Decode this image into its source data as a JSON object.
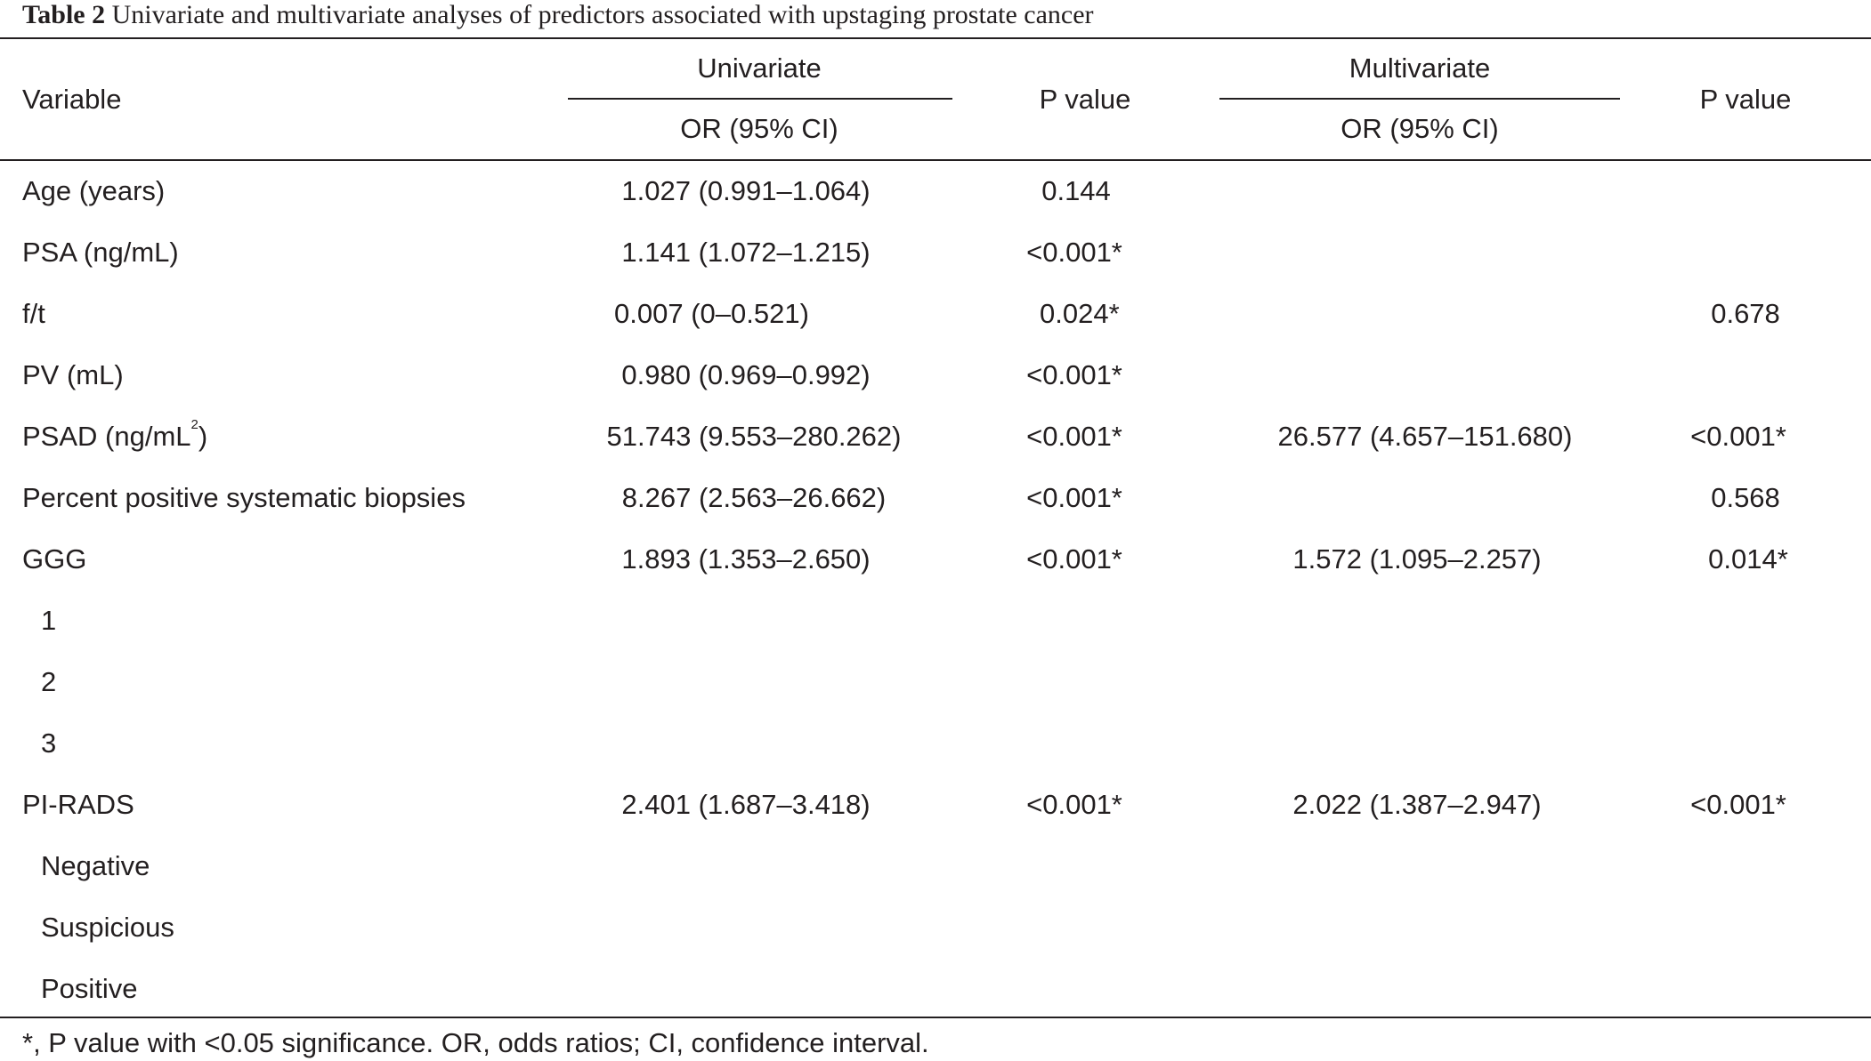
{
  "caption": {
    "label": "Table 2",
    "text": "Univariate and multivariate analyses of predictors associated with upstaging prostate cancer"
  },
  "header": {
    "variable": "Variable",
    "univariate": "Univariate",
    "multivariate": "Multivariate",
    "or_ci": "OR (95% CI)",
    "p_value": "P value"
  },
  "rows": [
    {
      "variable": "Age (years)",
      "uni_or": "1.027 (0.991–1.064)",
      "uni_p": "0.144",
      "multi_or": "",
      "multi_p": ""
    },
    {
      "variable": "PSA (ng/mL)",
      "uni_or": "1.141 (1.072–1.215)",
      "uni_p": "<0.001*",
      "multi_or": "",
      "multi_p": ""
    },
    {
      "variable": "f/t",
      "uni_or": "0.007 (0–0.521)",
      "uni_p": "0.024*",
      "multi_or": "",
      "multi_p": "0.678"
    },
    {
      "variable": "PV (mL)",
      "uni_or": "0.980 (0.969–0.992)",
      "uni_p": "<0.001*",
      "multi_or": "",
      "multi_p": ""
    },
    {
      "variable": "PSAD (ng/mL",
      "variable_sup": "2",
      "variable_tail": ")",
      "uni_or": "51.743 (9.553–280.262)",
      "uni_p": "<0.001*",
      "multi_or": "26.577 (4.657–151.680)",
      "multi_p": "<0.001*"
    },
    {
      "variable": "Percent positive systematic biopsies",
      "uni_or": "8.267 (2.563–26.662)",
      "uni_p": "<0.001*",
      "multi_or": "",
      "multi_p": "0.568"
    },
    {
      "variable": "GGG",
      "uni_or": "1.893 (1.353–2.650)",
      "uni_p": "<0.001*",
      "multi_or": "1.572 (1.095–2.257)",
      "multi_p": "0.014*"
    },
    {
      "variable": "1",
      "uni_or": "",
      "uni_p": "",
      "multi_or": "",
      "multi_p": ""
    },
    {
      "variable": "2",
      "uni_or": "",
      "uni_p": "",
      "multi_or": "",
      "multi_p": ""
    },
    {
      "variable": "3",
      "uni_or": "",
      "uni_p": "",
      "multi_or": "",
      "multi_p": ""
    },
    {
      "variable": "PI-RADS",
      "uni_or": "2.401 (1.687–3.418)",
      "uni_p": "<0.001*",
      "multi_or": "2.022 (1.387–2.947)",
      "multi_p": "<0.001*"
    },
    {
      "variable": "Negative",
      "uni_or": "",
      "uni_p": "",
      "multi_or": "",
      "multi_p": ""
    },
    {
      "variable": "Suspicious",
      "uni_or": "",
      "uni_p": "",
      "multi_or": "",
      "multi_p": ""
    },
    {
      "variable": "Positive",
      "uni_or": "",
      "uni_p": "",
      "multi_or": "",
      "multi_p": ""
    }
  ],
  "footnote": "*, P value with <0.05 significance. OR, odds ratios; CI, confidence interval."
}
